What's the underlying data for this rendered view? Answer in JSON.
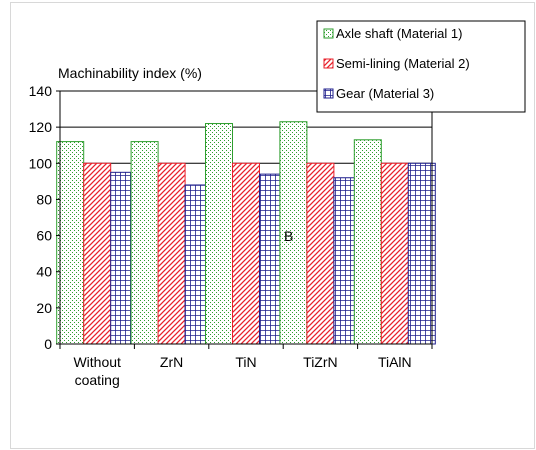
{
  "chart_data": {
    "type": "bar",
    "ylabel": "Machinability index (%)",
    "ylim": [
      0,
      140
    ],
    "yticks": [
      0,
      20,
      40,
      60,
      80,
      100,
      120,
      140
    ],
    "categories": [
      [
        "Without",
        "coating"
      ],
      [
        "ZrN"
      ],
      [
        "TiN"
      ],
      [
        "TiZrN"
      ],
      [
        "TiAlN"
      ]
    ],
    "series": [
      {
        "name": "Axle shaft (Material 1)",
        "values": [
          112,
          112,
          122,
          123,
          113
        ],
        "color": "#2e9e2e",
        "pattern": "dots"
      },
      {
        "name": "Semi-lining (Material 2)",
        "values": [
          100,
          100,
          100,
          100,
          100
        ],
        "color": "#e8212b",
        "pattern": "diagonal"
      },
      {
        "name": "Gear (Material 3)",
        "values": [
          95,
          88,
          94,
          92,
          100
        ],
        "color": "#1f1f8c",
        "pattern": "grid"
      }
    ],
    "annotation": "B",
    "grid": true,
    "legend_position": "top-right"
  }
}
